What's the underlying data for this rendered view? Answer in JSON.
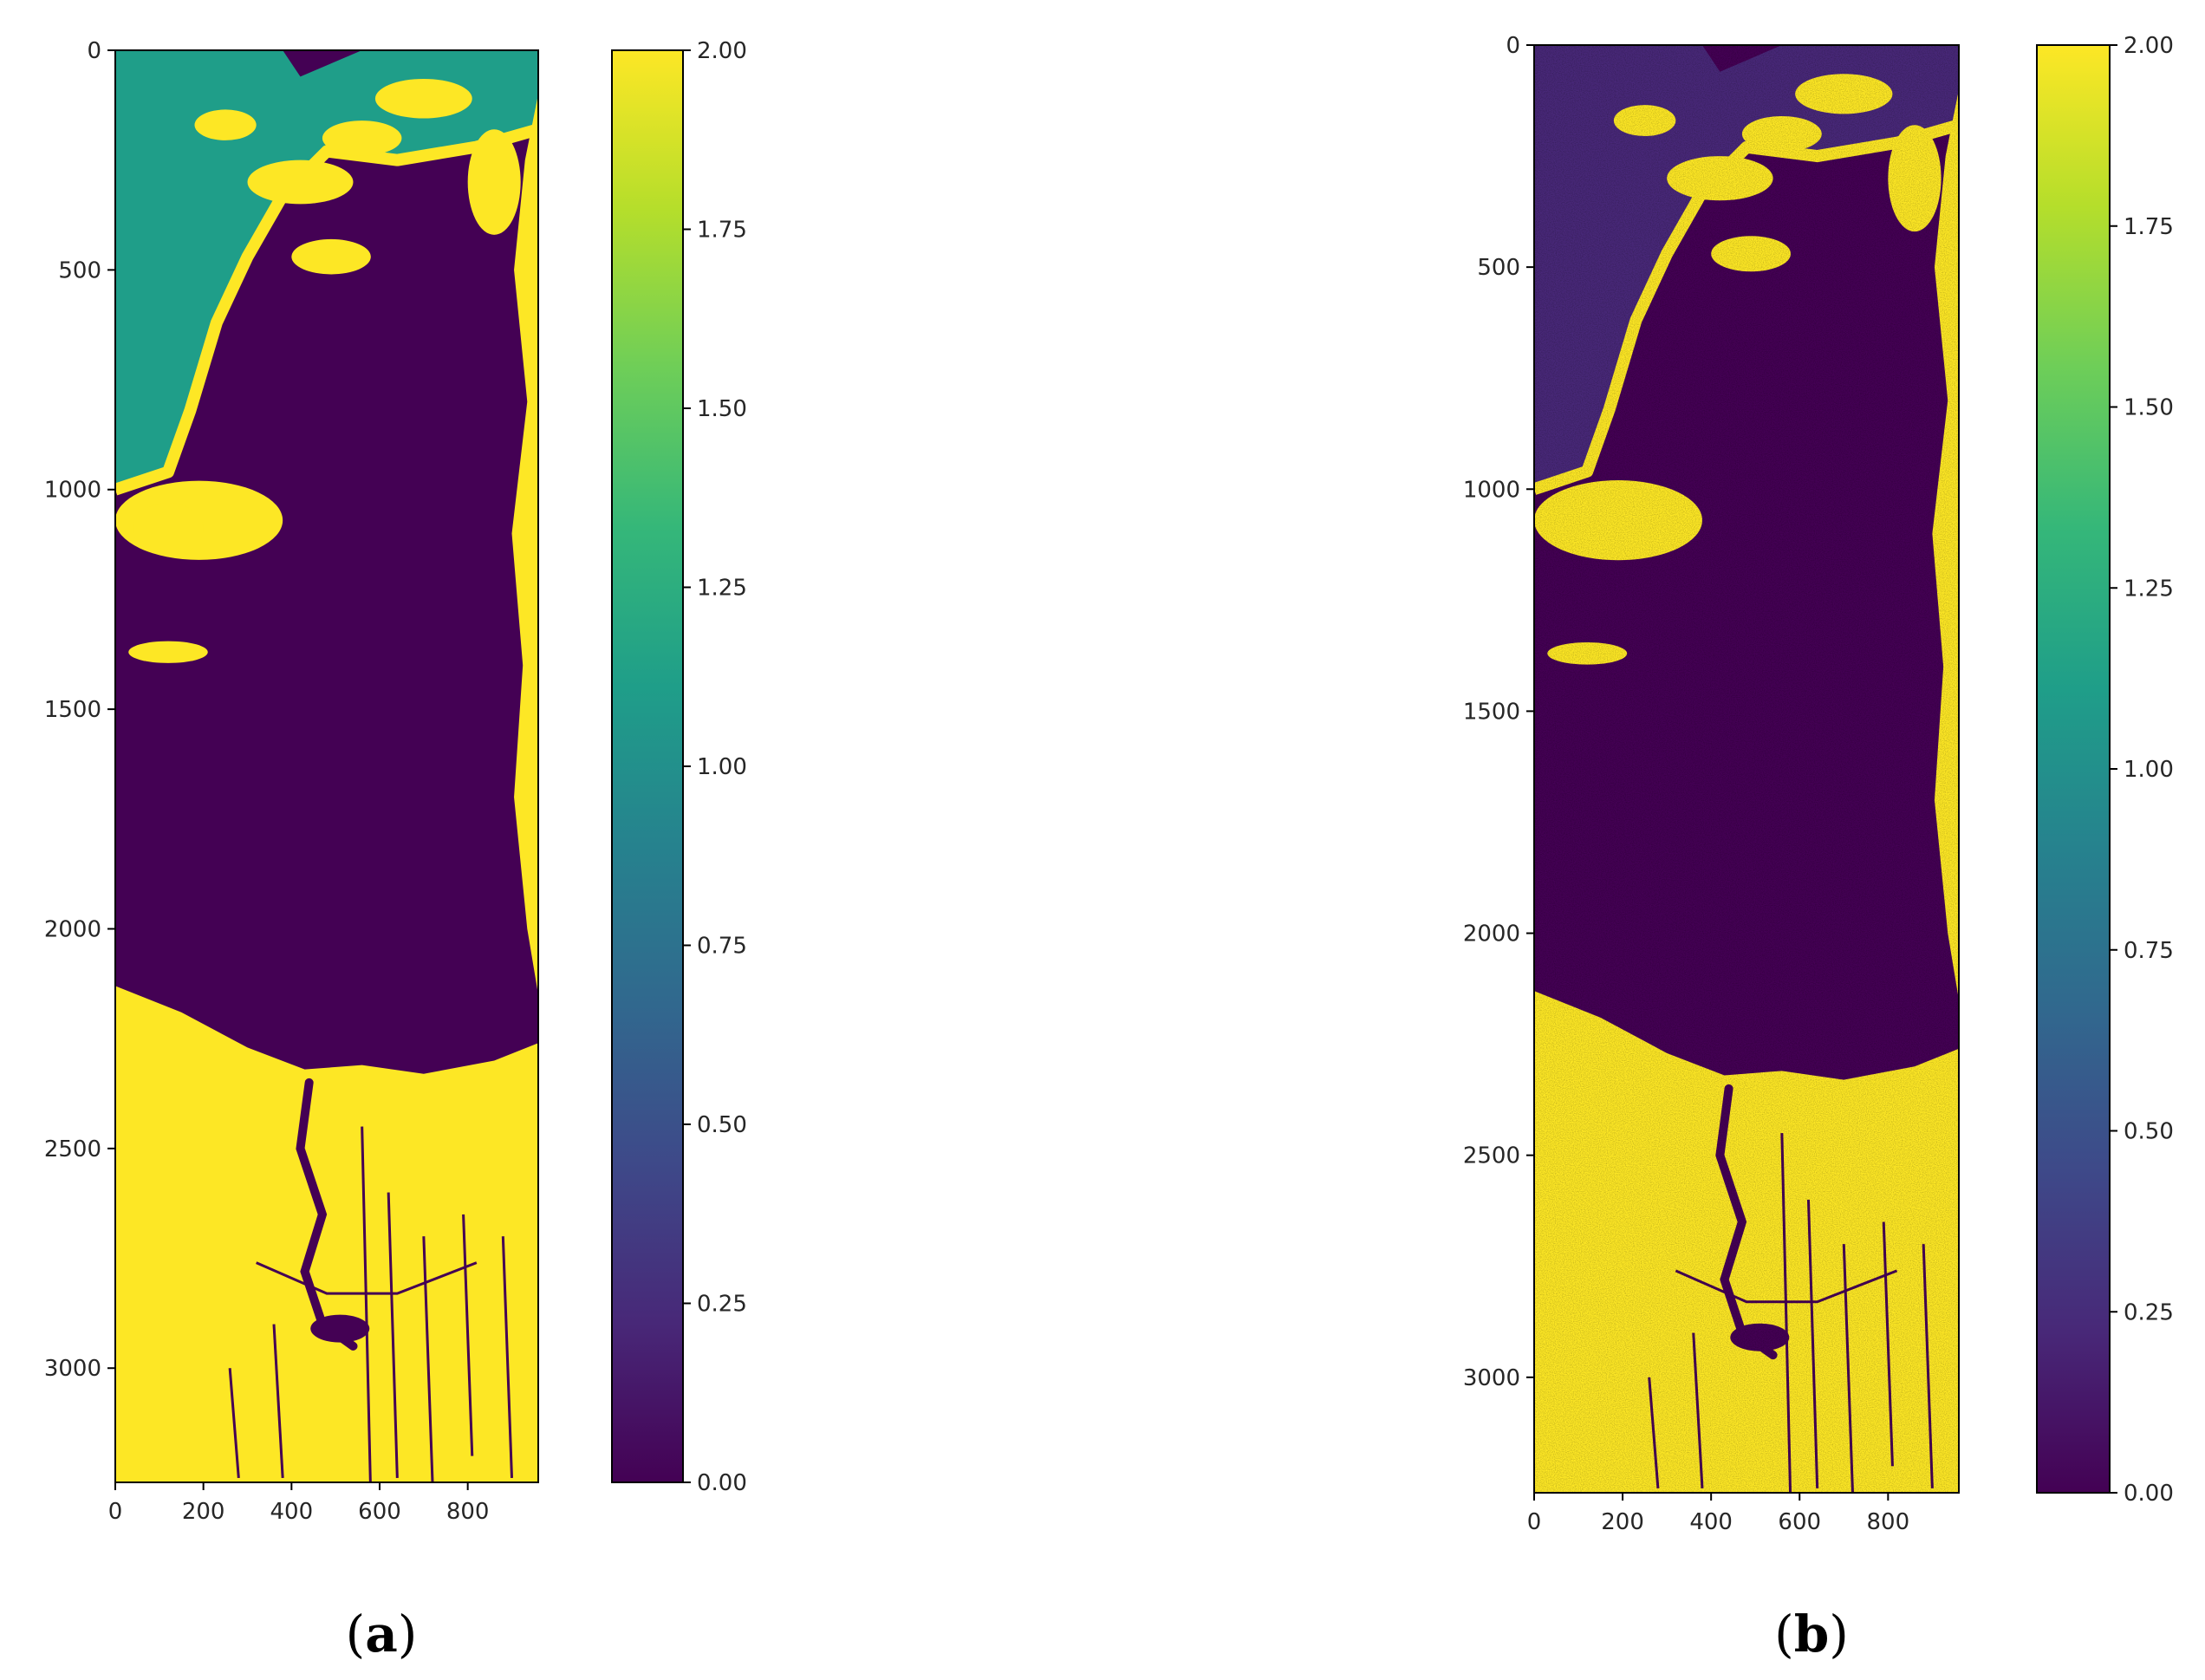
{
  "colors": {
    "background": "#ffffff",
    "viridis_stops": [
      "#440154",
      "#482878",
      "#3e4989",
      "#31688e",
      "#26828e",
      "#1f9e89",
      "#35b779",
      "#6ece58",
      "#b5de2b",
      "#fde725"
    ],
    "class_0": "#440154",
    "class_1": "#21918c",
    "class_2": "#fde725"
  },
  "chart_data": [
    {
      "type": "heatmap",
      "panel_label": "(a)",
      "label_letter": "a",
      "colormap": "viridis",
      "xlim": [
        0,
        960
      ],
      "ylim": [
        3260,
        0
      ],
      "x_ticks": [
        0,
        200,
        400,
        600,
        800
      ],
      "x_tick_labels": [
        "0",
        "200",
        "400",
        "600",
        "800"
      ],
      "y_ticks": [
        0,
        500,
        1000,
        1500,
        2000,
        2500,
        3000
      ],
      "y_tick_labels": [
        "0",
        "500",
        "1000",
        "1500",
        "2000",
        "2500",
        "3000"
      ],
      "colorbar": {
        "range": [
          0,
          2
        ],
        "ticks": [
          0,
          0.25,
          0.5,
          0.75,
          1,
          1.25,
          1.5,
          1.75,
          2
        ],
        "tick_labels": [
          "0.00",
          "0.25",
          "0.50",
          "0.75",
          "1.00",
          "1.25",
          "1.50",
          "1.75",
          "2.00"
        ]
      },
      "classes_shown": [
        0,
        1,
        2
      ],
      "noise": false
    },
    {
      "type": "heatmap",
      "panel_label": "(b)",
      "label_letter": "b",
      "colormap": "viridis",
      "xlim": [
        0,
        960
      ],
      "ylim": [
        3260,
        0
      ],
      "x_ticks": [
        0,
        200,
        400,
        600,
        800
      ],
      "x_tick_labels": [
        "0",
        "200",
        "400",
        "600",
        "800"
      ],
      "y_ticks": [
        0,
        500,
        1000,
        1500,
        2000,
        2500,
        3000
      ],
      "y_tick_labels": [
        "0",
        "500",
        "1000",
        "1500",
        "2000",
        "2500",
        "3000"
      ],
      "colorbar": {
        "range": [
          0,
          2
        ],
        "ticks": [
          0,
          0.25,
          0.5,
          0.75,
          1,
          1.25,
          1.5,
          1.75,
          2
        ],
        "tick_labels": [
          "0.00",
          "0.25",
          "0.50",
          "0.75",
          "1.00",
          "1.25",
          "1.50",
          "1.75",
          "2.00"
        ]
      },
      "classes_shown": [
        0,
        0.2,
        2
      ],
      "noise": true
    }
  ]
}
